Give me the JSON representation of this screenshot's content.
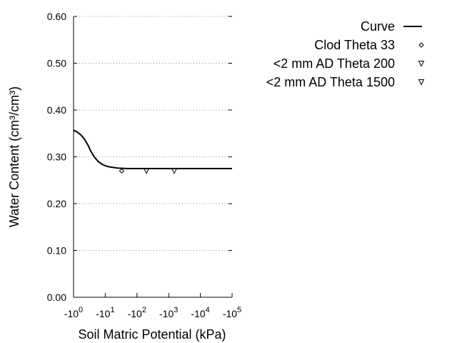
{
  "chart_data": {
    "type": "line",
    "title": "",
    "xlabel": "Soil Matric Potential (kPa)",
    "ylabel": "Water Content (cm³/cm³)",
    "x_scale": "log",
    "x_axis_sign": "negative",
    "xlim": [
      1,
      100000
    ],
    "ylim": [
      0.0,
      0.6
    ],
    "x_ticks": [
      {
        "base": "-10",
        "exp": "0"
      },
      {
        "base": "-10",
        "exp": "1"
      },
      {
        "base": "-10",
        "exp": "2"
      },
      {
        "base": "-10",
        "exp": "3"
      },
      {
        "base": "-10",
        "exp": "4"
      },
      {
        "base": "-10",
        "exp": "5"
      }
    ],
    "y_ticks": [
      "0.00",
      "0.10",
      "0.20",
      "0.30",
      "0.40",
      "0.50",
      "0.60"
    ],
    "grid": "horizontal-dotted",
    "legend_position": "top-right-outside",
    "series": [
      {
        "name": "Curve",
        "kind": "line",
        "color": "#000000",
        "points": [
          [
            1,
            0.357
          ],
          [
            1.3,
            0.353
          ],
          [
            1.7,
            0.347
          ],
          [
            2.2,
            0.338
          ],
          [
            2.8,
            0.326
          ],
          [
            3.5,
            0.312
          ],
          [
            4.5,
            0.3
          ],
          [
            6,
            0.29
          ],
          [
            8,
            0.284
          ],
          [
            11,
            0.28
          ],
          [
            15,
            0.278
          ],
          [
            25,
            0.276
          ],
          [
            50,
            0.275
          ],
          [
            100,
            0.275
          ],
          [
            1000,
            0.275
          ],
          [
            10000,
            0.275
          ],
          [
            100000,
            0.275
          ]
        ]
      },
      {
        "name": "Clod Theta 33",
        "kind": "scatter",
        "marker": "diamond",
        "points": [
          [
            33,
            0.27
          ]
        ]
      },
      {
        "name": "<2 mm AD Theta 200",
        "kind": "scatter",
        "marker": "triangle-down",
        "points": [
          [
            200,
            0.27
          ]
        ]
      },
      {
        "name": "<2 mm AD Theta 1500",
        "kind": "scatter",
        "marker": "triangle-down",
        "points": [
          [
            1500,
            0.27
          ]
        ]
      }
    ]
  }
}
